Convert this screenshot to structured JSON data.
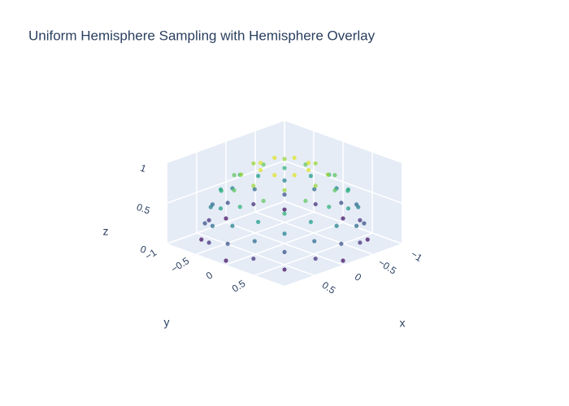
{
  "chart_data": {
    "type": "scatter3d",
    "title": "Uniform Hemisphere Sampling with Hemisphere Overlay",
    "xlabel": "x",
    "ylabel": "y",
    "zlabel": "z",
    "xlim": [
      -1,
      1
    ],
    "ylim": [
      -1,
      1
    ],
    "zlim": [
      0,
      1
    ],
    "xticks": [
      {
        "value": -1,
        "label": "−1"
      },
      {
        "value": -0.5,
        "label": "−0.5"
      },
      0,
      0.5
    ],
    "yticks": [
      {
        "value": -1,
        "label": "−1"
      },
      {
        "value": -0.5,
        "label": "−0.5"
      },
      0,
      0.5
    ],
    "zticks": [
      0,
      0.5,
      1
    ],
    "colorscale": [
      "#440154",
      "#482878",
      "#3e4989",
      "#31688e",
      "#26828e",
      "#1f9e89",
      "#35b779",
      "#6ece58",
      "#b5de2b",
      "#fde725"
    ],
    "marker_opacity": 0.75,
    "x": [
      1,
      0.71,
      0,
      -0.71,
      -1,
      -0.71,
      0,
      0.71,
      0.91,
      0.38,
      -0.38,
      -0.91,
      -0.91,
      -0.38,
      0.38,
      0.91,
      0.97,
      0.68,
      0,
      -0.68,
      -0.97,
      -0.68,
      0,
      0.68,
      0.87,
      0.36,
      -0.36,
      -0.87,
      -0.87,
      -0.36,
      0.36,
      0.87,
      0.89,
      0.63,
      0,
      -0.63,
      -0.89,
      -0.63,
      0,
      0.63,
      0.77,
      0.32,
      -0.32,
      -0.77,
      -0.77,
      -0.32,
      0.32,
      0.77,
      0.76,
      0.54,
      0,
      -0.54,
      -0.76,
      -0.54,
      0,
      0.54,
      0.61,
      0.25,
      -0.25,
      -0.61,
      -0.61,
      -0.25,
      0.25,
      0.61,
      0.53,
      0.37,
      0,
      -0.37,
      -0.53,
      -0.37,
      0,
      0.37,
      0.29,
      0.12,
      -0.12,
      -0.29,
      -0.29,
      -0.12,
      0.12,
      0.29
    ],
    "y": [
      0,
      0.71,
      1,
      0.71,
      0,
      -0.71,
      -1,
      -0.71,
      0.38,
      0.91,
      0.91,
      0.38,
      -0.38,
      -0.91,
      -0.91,
      -0.38,
      0,
      0.68,
      0.97,
      0.68,
      0,
      -0.68,
      -0.97,
      -0.68,
      0.36,
      0.87,
      0.87,
      0.36,
      -0.36,
      -0.87,
      -0.87,
      -0.36,
      0,
      0.63,
      0.89,
      0.63,
      0,
      -0.63,
      -0.89,
      -0.63,
      0.32,
      0.77,
      0.77,
      0.32,
      -0.32,
      -0.77,
      -0.77,
      -0.32,
      0,
      0.54,
      0.76,
      0.54,
      0,
      -0.54,
      -0.76,
      -0.54,
      0.25,
      0.61,
      0.61,
      0.25,
      -0.25,
      -0.61,
      -0.61,
      -0.25,
      0,
      0.37,
      0.53,
      0.37,
      0,
      -0.37,
      -0.53,
      -0.37,
      0.12,
      0.29,
      0.29,
      0.12,
      -0.12,
      -0.29,
      -0.29,
      -0.12
    ],
    "z": [
      0.05,
      0.05,
      0.05,
      0.05,
      0.05,
      0.05,
      0.05,
      0.05,
      0.15,
      0.15,
      0.15,
      0.15,
      0.15,
      0.15,
      0.15,
      0.15,
      0.25,
      0.25,
      0.25,
      0.25,
      0.25,
      0.25,
      0.25,
      0.25,
      0.35,
      0.35,
      0.35,
      0.35,
      0.35,
      0.35,
      0.35,
      0.35,
      0.45,
      0.45,
      0.45,
      0.45,
      0.45,
      0.45,
      0.45,
      0.45,
      0.55,
      0.55,
      0.55,
      0.55,
      0.55,
      0.55,
      0.55,
      0.55,
      0.65,
      0.65,
      0.65,
      0.65,
      0.65,
      0.65,
      0.65,
      0.65,
      0.75,
      0.75,
      0.75,
      0.75,
      0.75,
      0.75,
      0.75,
      0.75,
      0.85,
      0.85,
      0.85,
      0.85,
      0.85,
      0.85,
      0.85,
      0.85,
      0.95,
      0.95,
      0.95,
      0.95,
      0.95,
      0.95,
      0.95,
      0.95
    ]
  }
}
